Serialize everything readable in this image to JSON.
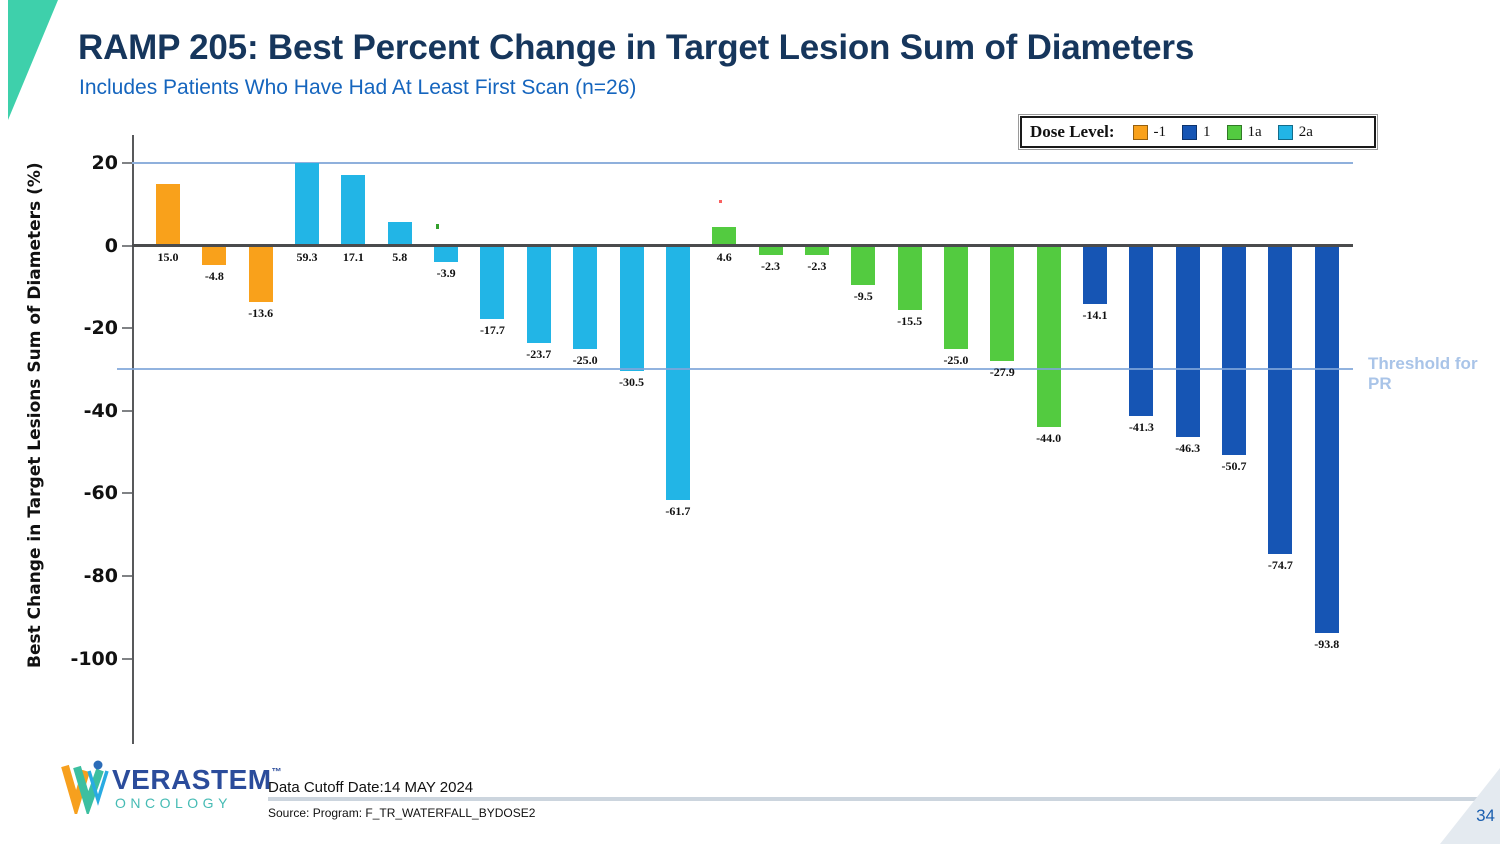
{
  "header": {
    "title": "RAMP 205: Best Percent Change in Target Lesion Sum of Diameters",
    "subtitle": "Includes Patients Who Have Had At Least First Scan (n=26)"
  },
  "chart_data": {
    "type": "bar",
    "subtype": "waterfall",
    "title": "RAMP 205: Best Percent Change in Target Lesion Sum of Diameters",
    "xlabel": "",
    "ylabel": "Best Change in Target Lesions Sum of Diameters (%)",
    "ylim": [
      -115,
      22
    ],
    "yticks": [
      20,
      0,
      -20,
      -40,
      -60,
      -80,
      -100
    ],
    "grid": "off",
    "bar_display_clip_max": 20,
    "legend": {
      "position": "top-right",
      "title": "Dose Level:",
      "entries": [
        {
          "label": "-1",
          "color": "#F9A11B"
        },
        {
          "label": "1",
          "color": "#1655B4"
        },
        {
          "label": "1a",
          "color": "#53CB40"
        },
        {
          "label": "2a",
          "color": "#22B5E6"
        }
      ]
    },
    "reference_lines": [
      {
        "value": 20,
        "label": ""
      },
      {
        "value": -30,
        "label": "Threshold for PR"
      }
    ],
    "threshold_label_line1": "Threshold for",
    "threshold_label_line2": "PR",
    "bars": [
      {
        "value": 15.0,
        "label": "15.0",
        "dose": "-1"
      },
      {
        "value": -4.8,
        "label": "-4.8",
        "dose": "-1"
      },
      {
        "value": -13.6,
        "label": "-13.6",
        "dose": "-1"
      },
      {
        "value": 59.3,
        "label": "59.3",
        "dose": "2a"
      },
      {
        "value": 17.1,
        "label": "17.1",
        "dose": "2a"
      },
      {
        "value": 5.8,
        "label": "5.8",
        "dose": "2a"
      },
      {
        "value": -3.9,
        "label": "-3.9",
        "dose": "2a"
      },
      {
        "value": -17.7,
        "label": "-17.7",
        "dose": "2a"
      },
      {
        "value": -23.7,
        "label": "-23.7",
        "dose": "2a"
      },
      {
        "value": -25.0,
        "label": "-25.0",
        "dose": "2a"
      },
      {
        "value": -30.5,
        "label": "-30.5",
        "dose": "2a"
      },
      {
        "value": -61.7,
        "label": "-61.7",
        "dose": "2a"
      },
      {
        "value": 4.6,
        "label": "4.6",
        "dose": "1a"
      },
      {
        "value": -2.3,
        "label": "-2.3",
        "dose": "1a"
      },
      {
        "value": -2.3,
        "label": "-2.3",
        "dose": "1a"
      },
      {
        "value": -9.5,
        "label": "-9.5",
        "dose": "1a"
      },
      {
        "value": -15.5,
        "label": "-15.5",
        "dose": "1a"
      },
      {
        "value": -25.0,
        "label": "-25.0",
        "dose": "1a"
      },
      {
        "value": -27.9,
        "label": "-27.9",
        "dose": "1a"
      },
      {
        "value": -44.0,
        "label": "-44.0",
        "dose": "1a"
      },
      {
        "value": -14.1,
        "label": "-14.1",
        "dose": "1"
      },
      {
        "value": -41.3,
        "label": "-41.3",
        "dose": "1"
      },
      {
        "value": -46.3,
        "label": "-46.3",
        "dose": "1"
      },
      {
        "value": -50.7,
        "label": "-50.7",
        "dose": "1"
      },
      {
        "value": -74.7,
        "label": "-74.7",
        "dose": "1"
      },
      {
        "value": -93.8,
        "label": "-93.8",
        "dose": "1"
      }
    ]
  },
  "colors": {
    "title_navy": "#16365C",
    "subtitle_blue": "#1565BE",
    "threshold_blue": "#A9C4E8",
    "accent_teal": "#3ED0AB",
    "zero_line": "#4A4B4D",
    "page_number_blue": "#1B5FAF"
  },
  "footer": {
    "logo_name": "VERASTEM",
    "logo_tm": "™",
    "logo_sub": "ONCOLOGY",
    "cutoff": "Data Cutoff Date:14 MAY 2024",
    "source": "Source: Program: F_TR_WATERFALL_BYDOSE2",
    "page_number": "34"
  }
}
